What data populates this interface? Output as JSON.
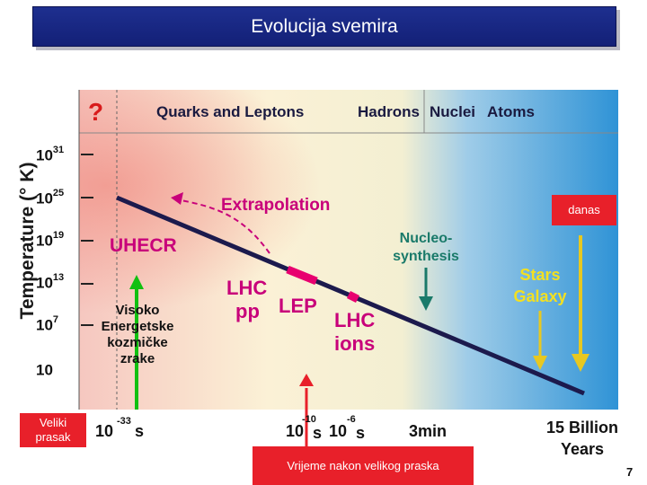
{
  "slide": {
    "title": "Evolucija svemira",
    "danas": "danas",
    "veliki_prasak_line1": "Veliki",
    "veliki_prasak_line2": "prasak",
    "vrijeme": "Vrijeme nakon velikog praska",
    "uhecr_desc": [
      "Visoko",
      "Energetske",
      "kozmičke",
      "zrake"
    ],
    "page_number": "7"
  },
  "chart_data": {
    "type": "line",
    "ylabel": "Temperature (° K)",
    "y_ticks": [
      {
        "base": "10",
        "exp": "31"
      },
      {
        "base": "10",
        "exp": "25"
      },
      {
        "base": "10",
        "exp": "19"
      },
      {
        "base": "10",
        "exp": "13"
      },
      {
        "base": "10",
        "exp": "7"
      },
      {
        "base": "10",
        "exp": ""
      }
    ],
    "x_ticks": [
      {
        "label": "10",
        "exp": "-33",
        "unit": "s"
      },
      {
        "label": "10",
        "exp": "-10",
        "unit": "s"
      },
      {
        "label": "10",
        "exp": "-6",
        "unit": "s"
      },
      {
        "label": "3min",
        "exp": "",
        "unit": ""
      },
      {
        "label": "15 Billion",
        "exp": "",
        "unit": ""
      }
    ],
    "x_unit_label": "Years",
    "eras": [
      "?",
      "Quarks and Leptons",
      "Hadrons",
      "Nuclei",
      "Atoms"
    ],
    "annotations": {
      "extrapolation": "Extrapolation",
      "uhecr": "UHECR",
      "lhc_pp": [
        "LHC",
        "pp"
      ],
      "lep": "LEP",
      "lhc_ions": [
        "LHC",
        "ions"
      ],
      "nucleosynthesis": [
        "Nucleo-",
        "synthesis"
      ],
      "stars_galaxy": [
        "Stars",
        "Galaxy"
      ]
    },
    "colors": {
      "line": "#1c1a4d",
      "marker": "#e8006f",
      "extrapolation": "#c8007a",
      "green": "#11c011",
      "red": "#e8202a",
      "nucleo": "#1a7a6a",
      "yellow": "#f0d020"
    }
  }
}
